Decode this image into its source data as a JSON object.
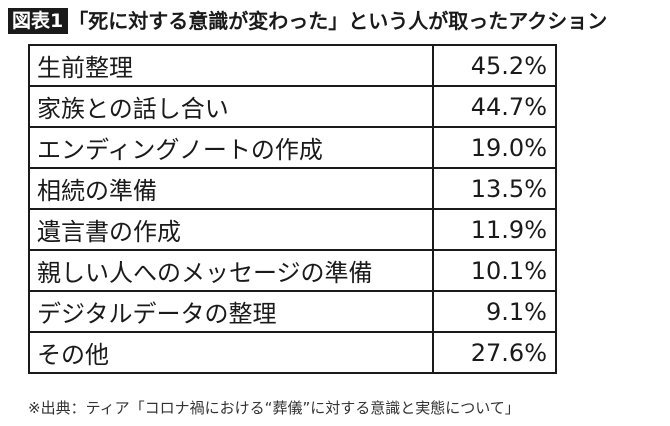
{
  "header": {
    "badge": "図表1",
    "title": "「死に対する意識が変わった」という人が取ったアクション"
  },
  "table": {
    "rows": [
      {
        "label": "生前整理",
        "value": "45.2%"
      },
      {
        "label": "家族との話し合い",
        "value": "44.7%"
      },
      {
        "label": "エンディングノートの作成",
        "value": "19.0%"
      },
      {
        "label": "相続の準備",
        "value": "13.5%"
      },
      {
        "label": "遺言書の作成",
        "value": "11.9%"
      },
      {
        "label": "親しい人へのメッセージの準備",
        "value": "10.1%"
      },
      {
        "label": "デジタルデータの整理",
        "value": "9.1%"
      },
      {
        "label": "その他",
        "value": "27.6%"
      }
    ]
  },
  "footnote": "※出典：ティア「コロナ禍における“葬儀”に対する意識と実態について」"
}
